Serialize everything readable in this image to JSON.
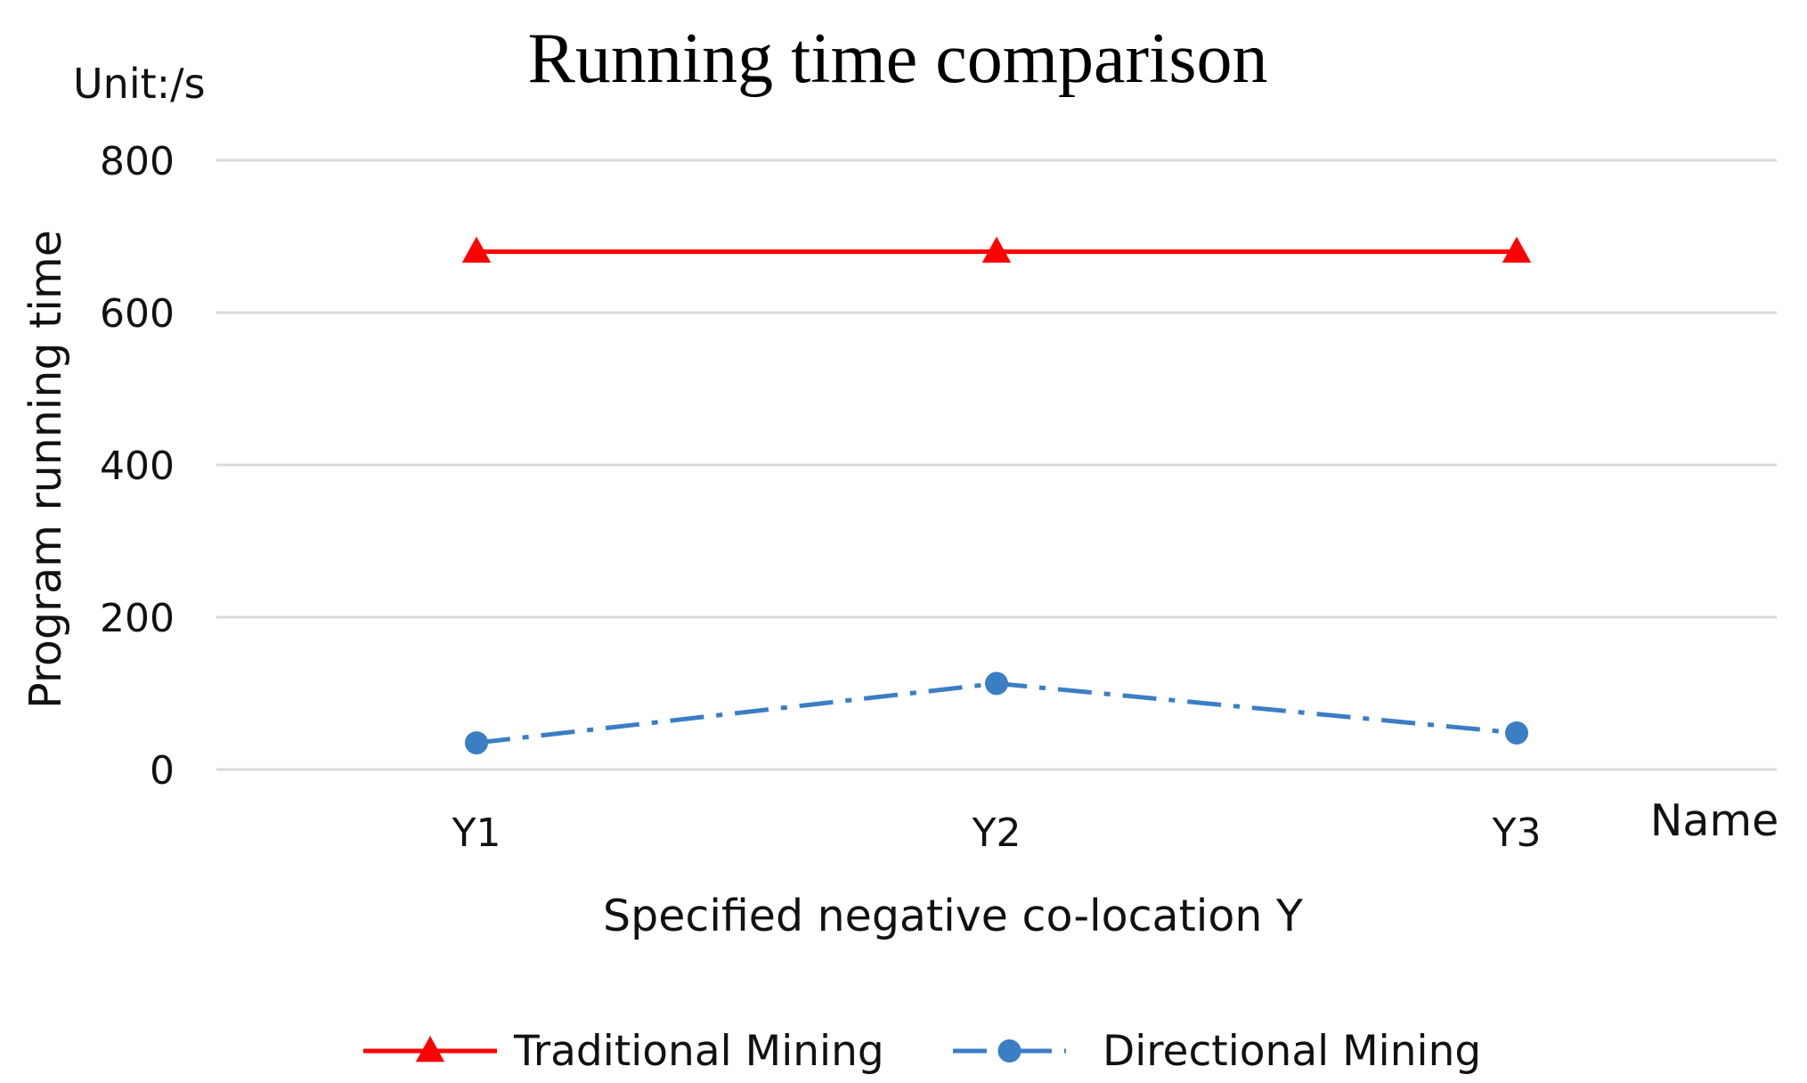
{
  "chart_data": {
    "type": "line",
    "title": "Running time comparison",
    "unit_label": "Unit:/s",
    "xlabel": "Specified negative co-location Y",
    "x_end_label": "Name",
    "ylabel": "Program running time",
    "categories": [
      "Y1",
      "Y2",
      "Y3"
    ],
    "ylim": [
      0,
      800
    ],
    "yticks": [
      0,
      200,
      400,
      600,
      800
    ],
    "grid": true,
    "legend_position": "bottom",
    "series": [
      {
        "name": "Traditional Mining",
        "values": [
          680,
          680,
          680
        ],
        "color": "#ff0000",
        "marker": "triangle",
        "line": "solid"
      },
      {
        "name": "Directional Mining",
        "values": [
          35,
          113,
          48
        ],
        "color": "#3a7ec4",
        "marker": "circle",
        "line": "dash-dot"
      }
    ]
  }
}
